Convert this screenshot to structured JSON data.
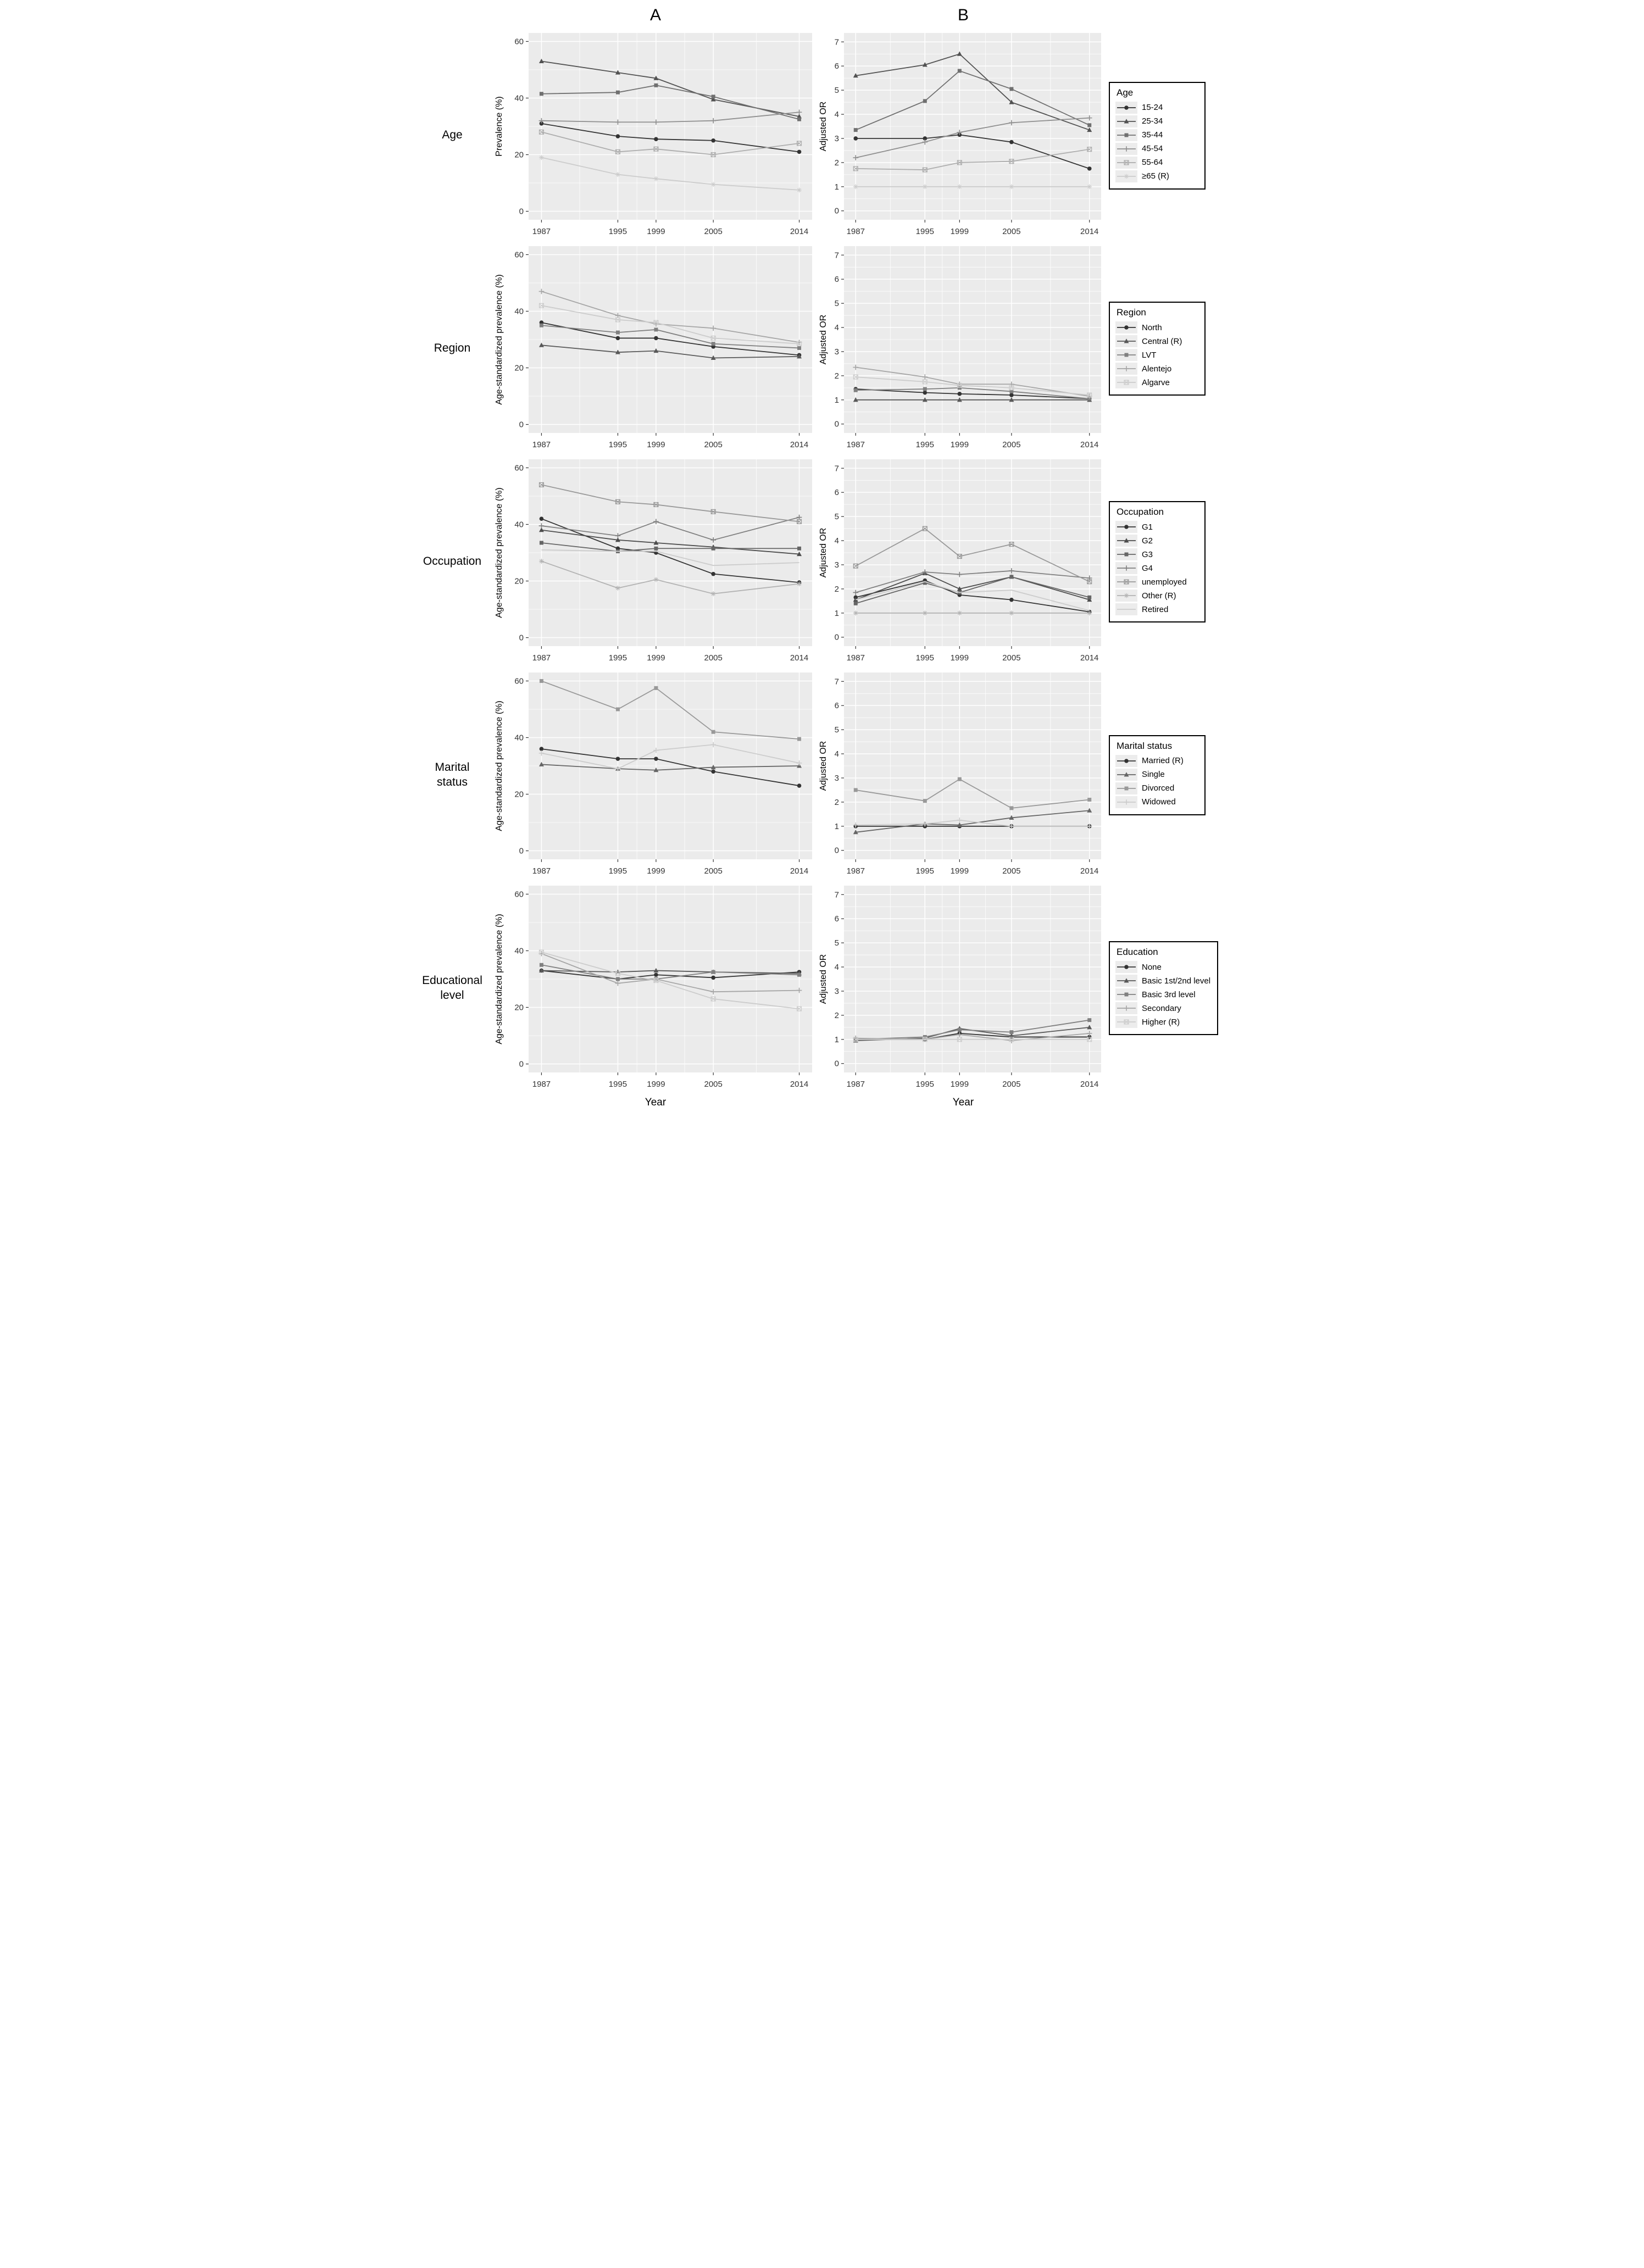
{
  "figure": {
    "column_titles": {
      "a": "A",
      "b": "B"
    },
    "x_axis_label": "Year",
    "b_ylabel": "Adjusted OR",
    "years": [
      1987,
      1995,
      1999,
      2005,
      2014
    ],
    "panel_a": {
      "ylim": [
        0,
        60
      ],
      "yticks": [
        0,
        20,
        40,
        60
      ]
    },
    "panel_b": {
      "ylim": [
        0,
        7
      ],
      "yticks": [
        0,
        1,
        2,
        3,
        4,
        5,
        6,
        7
      ]
    },
    "plot_background": "#ebebeb",
    "gridline_color": "#ffffff"
  },
  "chart_data": [
    {
      "id": "age",
      "type": "line",
      "row_label": "Age",
      "legend_title": "Age",
      "a_ylabel": "Prevalence (%)",
      "b_ylabel": "Adjusted OR",
      "x": [
        1987,
        1995,
        1999,
        2005,
        2014
      ],
      "series": [
        {
          "name": "15-24",
          "marker": "circle",
          "color": "#333333",
          "a": [
            31,
            26.5,
            25.5,
            25,
            21
          ],
          "b": [
            3.0,
            3.0,
            3.15,
            2.85,
            1.75
          ]
        },
        {
          "name": "25-34",
          "marker": "triangle",
          "color": "#525252",
          "a": [
            53,
            49,
            47,
            39.5,
            33.5
          ],
          "b": [
            5.6,
            6.05,
            6.5,
            4.5,
            3.35
          ]
        },
        {
          "name": "35-44",
          "marker": "square",
          "color": "#707070",
          "a": [
            41.5,
            42,
            44.5,
            40.5,
            32.5
          ],
          "b": [
            3.35,
            4.55,
            5.8,
            5.05,
            3.55
          ]
        },
        {
          "name": "45-54",
          "marker": "plus",
          "color": "#8f8f8f",
          "a": [
            32,
            31.5,
            31.5,
            32,
            35
          ],
          "b": [
            2.2,
            2.85,
            3.25,
            3.65,
            3.85
          ]
        },
        {
          "name": "55-64",
          "marker": "square-cross",
          "color": "#adadad",
          "a": [
            28,
            21,
            22,
            20,
            24
          ],
          "b": [
            1.75,
            1.7,
            2.0,
            2.05,
            2.55
          ]
        },
        {
          "name": "≥65 (R)",
          "marker": "asterisk",
          "color": "#cccccc",
          "a": [
            19,
            13,
            11.5,
            9.5,
            7.5
          ],
          "b": [
            1,
            1,
            1,
            1,
            1
          ]
        }
      ]
    },
    {
      "id": "region",
      "type": "line",
      "row_label": "Region",
      "legend_title": "Region",
      "a_ylabel": "Age-standardized prevalence (%)",
      "b_ylabel": "Adjusted OR",
      "x": [
        1987,
        1995,
        1999,
        2005,
        2014
      ],
      "series": [
        {
          "name": "North",
          "marker": "circle",
          "color": "#333333",
          "a": [
            36,
            30.5,
            30.5,
            27.5,
            24.5
          ],
          "b": [
            1.45,
            1.3,
            1.25,
            1.2,
            1.05
          ]
        },
        {
          "name": "Central (R)",
          "marker": "triangle",
          "color": "#595959",
          "a": [
            28,
            25.5,
            26,
            23.5,
            24
          ],
          "b": [
            1,
            1,
            1,
            1,
            1
          ]
        },
        {
          "name": "LVT",
          "marker": "square",
          "color": "#808080",
          "a": [
            35,
            32.5,
            33.5,
            28.5,
            27
          ],
          "b": [
            1.4,
            1.45,
            1.5,
            1.35,
            1.05
          ]
        },
        {
          "name": "Alentejo",
          "marker": "plus",
          "color": "#a6a6a6",
          "a": [
            47,
            38.5,
            35.5,
            34,
            29
          ],
          "b": [
            2.35,
            1.95,
            1.65,
            1.65,
            1.15
          ]
        },
        {
          "name": "Algarve",
          "marker": "square-cross",
          "color": "#cccccc",
          "a": [
            42,
            37,
            36,
            30.5,
            28.5
          ],
          "b": [
            1.95,
            1.75,
            1.6,
            1.5,
            1.2
          ]
        }
      ]
    },
    {
      "id": "occupation",
      "type": "line",
      "row_label": "Occupation",
      "legend_title": "Occupation",
      "a_ylabel": "Age-standardized prevalence (%)",
      "b_ylabel": "Adjusted OR",
      "x": [
        1987,
        1995,
        1999,
        2005,
        2014
      ],
      "series": [
        {
          "name": "G1",
          "marker": "circle",
          "color": "#333333",
          "a": [
            42,
            31.5,
            30,
            22.5,
            19.5
          ],
          "b": [
            1.65,
            2.35,
            1.75,
            1.55,
            1.05
          ]
        },
        {
          "name": "G2",
          "marker": "triangle",
          "color": "#4d4d4d",
          "a": [
            38,
            34.5,
            33.5,
            32,
            29.5
          ],
          "b": [
            1.55,
            2.65,
            2.0,
            2.5,
            1.55
          ]
        },
        {
          "name": "G3",
          "marker": "square",
          "color": "#666666",
          "a": [
            33.5,
            30.5,
            31.5,
            31.5,
            31.5
          ],
          "b": [
            1.4,
            2.25,
            1.85,
            2.5,
            1.65
          ]
        },
        {
          "name": "G4",
          "marker": "plus",
          "color": "#808080",
          "a": [
            39.5,
            36,
            41,
            34.5,
            42.5
          ],
          "b": [
            1.85,
            2.7,
            2.6,
            2.75,
            2.45
          ]
        },
        {
          "name": "unemployed",
          "marker": "square-cross",
          "color": "#999999",
          "a": [
            54,
            48,
            47,
            44.5,
            41
          ],
          "b": [
            2.95,
            4.5,
            3.35,
            3.85,
            2.3
          ]
        },
        {
          "name": "Other (R)",
          "marker": "asterisk",
          "color": "#b3b3b3",
          "a": [
            27,
            17.5,
            20.5,
            15.5,
            19
          ],
          "b": [
            1,
            1,
            1,
            1,
            1
          ]
        },
        {
          "name": "Retired",
          "marker": "none",
          "color": "#cccccc",
          "a": [
            31,
            30.5,
            30.5,
            25.5,
            26.5
          ],
          "b": [
            1.55,
            2.3,
            1.85,
            1.95,
            1.1
          ]
        }
      ]
    },
    {
      "id": "marital",
      "type": "line",
      "row_label": "Marital status",
      "legend_title": "Marital status",
      "a_ylabel": "Age-standardized prevalence (%)",
      "b_ylabel": "Adjusted OR",
      "x": [
        1987,
        1995,
        1999,
        2005,
        2014
      ],
      "series": [
        {
          "name": "Married (R)",
          "marker": "circle",
          "color": "#333333",
          "a": [
            36,
            32.5,
            32.5,
            28,
            23
          ],
          "b": [
            1,
            1,
            1,
            1,
            1
          ]
        },
        {
          "name": "Single",
          "marker": "triangle",
          "color": "#666666",
          "a": [
            30.5,
            29,
            28.5,
            29.5,
            30
          ],
          "b": [
            0.75,
            1.1,
            1.05,
            1.35,
            1.65
          ]
        },
        {
          "name": "Divorced",
          "marker": "square",
          "color": "#999999",
          "a": [
            60,
            50,
            57.5,
            42,
            39.5
          ],
          "b": [
            2.5,
            2.05,
            2.95,
            1.75,
            2.1
          ]
        },
        {
          "name": "Widowed",
          "marker": "plus",
          "color": "#cccccc",
          "a": [
            34.5,
            29,
            35.5,
            37.5,
            31
          ],
          "b": [
            1.05,
            1.1,
            1.25,
            1.0,
            1.0
          ]
        }
      ]
    },
    {
      "id": "education",
      "type": "line",
      "row_label": "Educational level",
      "legend_title": "Education",
      "a_ylabel": "Age-standardized prevalence (%)",
      "b_ylabel": "Adjusted OR",
      "x": [
        1987,
        1995,
        1999,
        2005,
        2014
      ],
      "series": [
        {
          "name": "None",
          "marker": "circle",
          "color": "#333333",
          "a": [
            33,
            30,
            31.5,
            30.5,
            32.5
          ],
          "b": [
            1.0,
            1.0,
            1.25,
            1.1,
            1.1
          ]
        },
        {
          "name": "Basic 1st/2nd level",
          "marker": "triangle",
          "color": "#595959",
          "a": [
            33,
            32.5,
            33,
            32.5,
            32
          ],
          "b": [
            0.95,
            1.05,
            1.45,
            1.15,
            1.5
          ]
        },
        {
          "name": "Basic 3rd level",
          "marker": "square",
          "color": "#808080",
          "a": [
            35,
            30,
            30,
            32.5,
            31.5
          ],
          "b": [
            1.0,
            1.1,
            1.4,
            1.3,
            1.8
          ]
        },
        {
          "name": "Secondary",
          "marker": "plus",
          "color": "#a6a6a6",
          "a": [
            39,
            28.5,
            30,
            25.5,
            26
          ],
          "b": [
            1.05,
            1.0,
            1.2,
            0.95,
            1.25
          ]
        },
        {
          "name": "Higher (R)",
          "marker": "square-cross",
          "color": "#cccccc",
          "a": [
            39.5,
            32,
            29.5,
            23,
            19.5
          ],
          "b": [
            1,
            1,
            1,
            1,
            1
          ]
        }
      ]
    }
  ]
}
